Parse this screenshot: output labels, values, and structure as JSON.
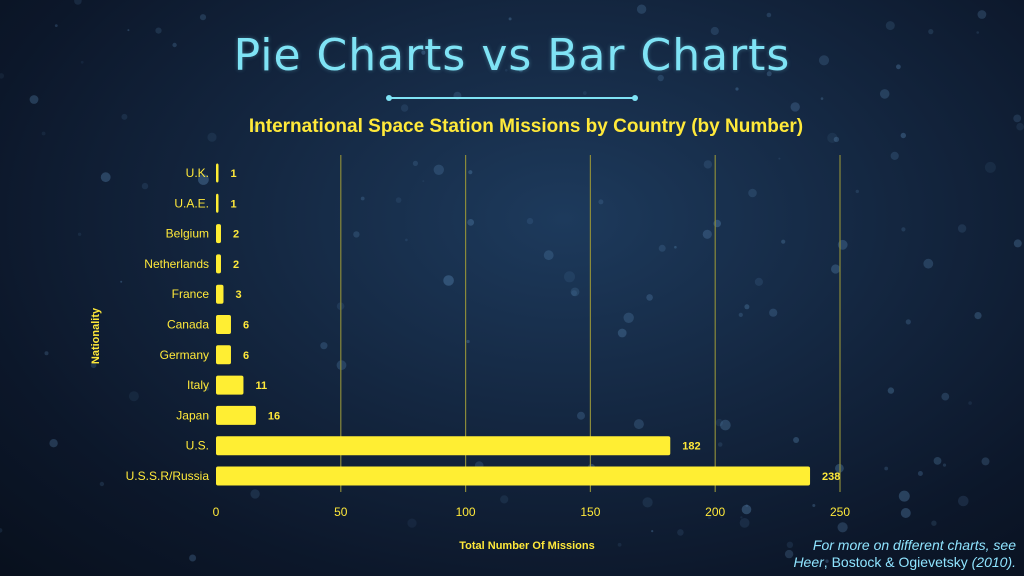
{
  "header": {
    "title": "Pie Charts vs Bar Charts"
  },
  "footer": {
    "credit_line1": "For more on different charts, see",
    "credit_authors": "Heer",
    "credit_authors_rest": ", Bostock & Ogievetsky",
    "credit_year": " (2010)."
  },
  "colors": {
    "bar": "#ffee33",
    "title": "#7fe3f5",
    "subtitle": "#ffe93a",
    "axis_text": "#ffe93a",
    "gridline": "#8a8a3a",
    "credit": "#8fe4ff"
  },
  "chart_data": {
    "type": "bar",
    "orientation": "horizontal",
    "title": "International Space Station Missions by Country (by Number)",
    "xlabel": "Total Number Of Missions",
    "ylabel": "Nationality",
    "categories": [
      "U.K.",
      "U.A.E.",
      "Belgium",
      "Netherlands",
      "France",
      "Canada",
      "Germany",
      "Italy",
      "Japan",
      "U.S.",
      "U.S.S.R/Russia"
    ],
    "values": [
      1,
      1,
      2,
      2,
      3,
      6,
      6,
      11,
      16,
      182,
      238
    ],
    "xlim": [
      0,
      250
    ],
    "xticks": [
      0,
      50,
      100,
      150,
      200,
      250
    ],
    "grid": "vertical",
    "data_labels": true
  }
}
